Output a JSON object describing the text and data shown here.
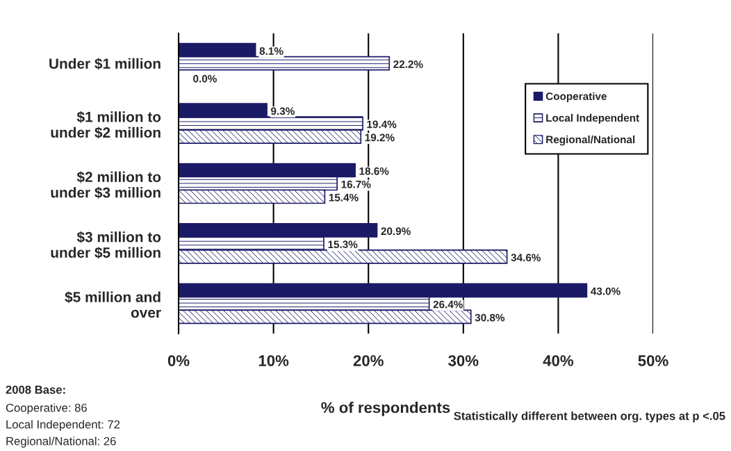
{
  "chart_data": {
    "type": "bar",
    "orientation": "horizontal",
    "categories": [
      "Under $1 million",
      "$1 million to\nunder $2 million",
      "$2 million to\nunder $3 million",
      "$3 million to\nunder $5 million",
      "$5 million and\nover"
    ],
    "series": [
      {
        "name": "Cooperative",
        "color": "#1a1a66",
        "values": [
          8.1,
          9.3,
          18.6,
          20.9,
          43.0
        ],
        "value_labels": [
          "8.1%",
          "9.3%",
          "18.6%",
          "20.9%",
          "43.0%"
        ]
      },
      {
        "name": "Local Independent",
        "color": "#1a1a66",
        "values": [
          22.2,
          19.4,
          16.7,
          15.3,
          26.4
        ],
        "value_labels": [
          "22.2%",
          "19.4%",
          "16.7%",
          "15.3%",
          "26.4%"
        ]
      },
      {
        "name": "Regional/National",
        "color": "#1a1a66",
        "values": [
          0.0,
          19.2,
          15.4,
          34.6,
          30.8
        ],
        "value_labels": [
          "0.0%",
          "19.2%",
          "15.4%",
          "34.6%",
          "30.8%"
        ]
      }
    ],
    "xlim": [
      0,
      50
    ],
    "xticks": [
      {
        "value": 0,
        "label": "0%"
      },
      {
        "value": 10,
        "label": "10%"
      },
      {
        "value": 20,
        "label": "20%"
      },
      {
        "value": 30,
        "label": "30%"
      },
      {
        "value": 40,
        "label": "40%"
      },
      {
        "value": 50,
        "label": "50%"
      }
    ],
    "xlabel": "% of respondents",
    "grid": "x",
    "legend": "top right",
    "annotations": [
      "2008 Base:",
      "Cooperative: 86",
      "Local Independent: 72",
      "Regional/National: 26",
      "Statistically different between org. types at p <.05"
    ]
  }
}
